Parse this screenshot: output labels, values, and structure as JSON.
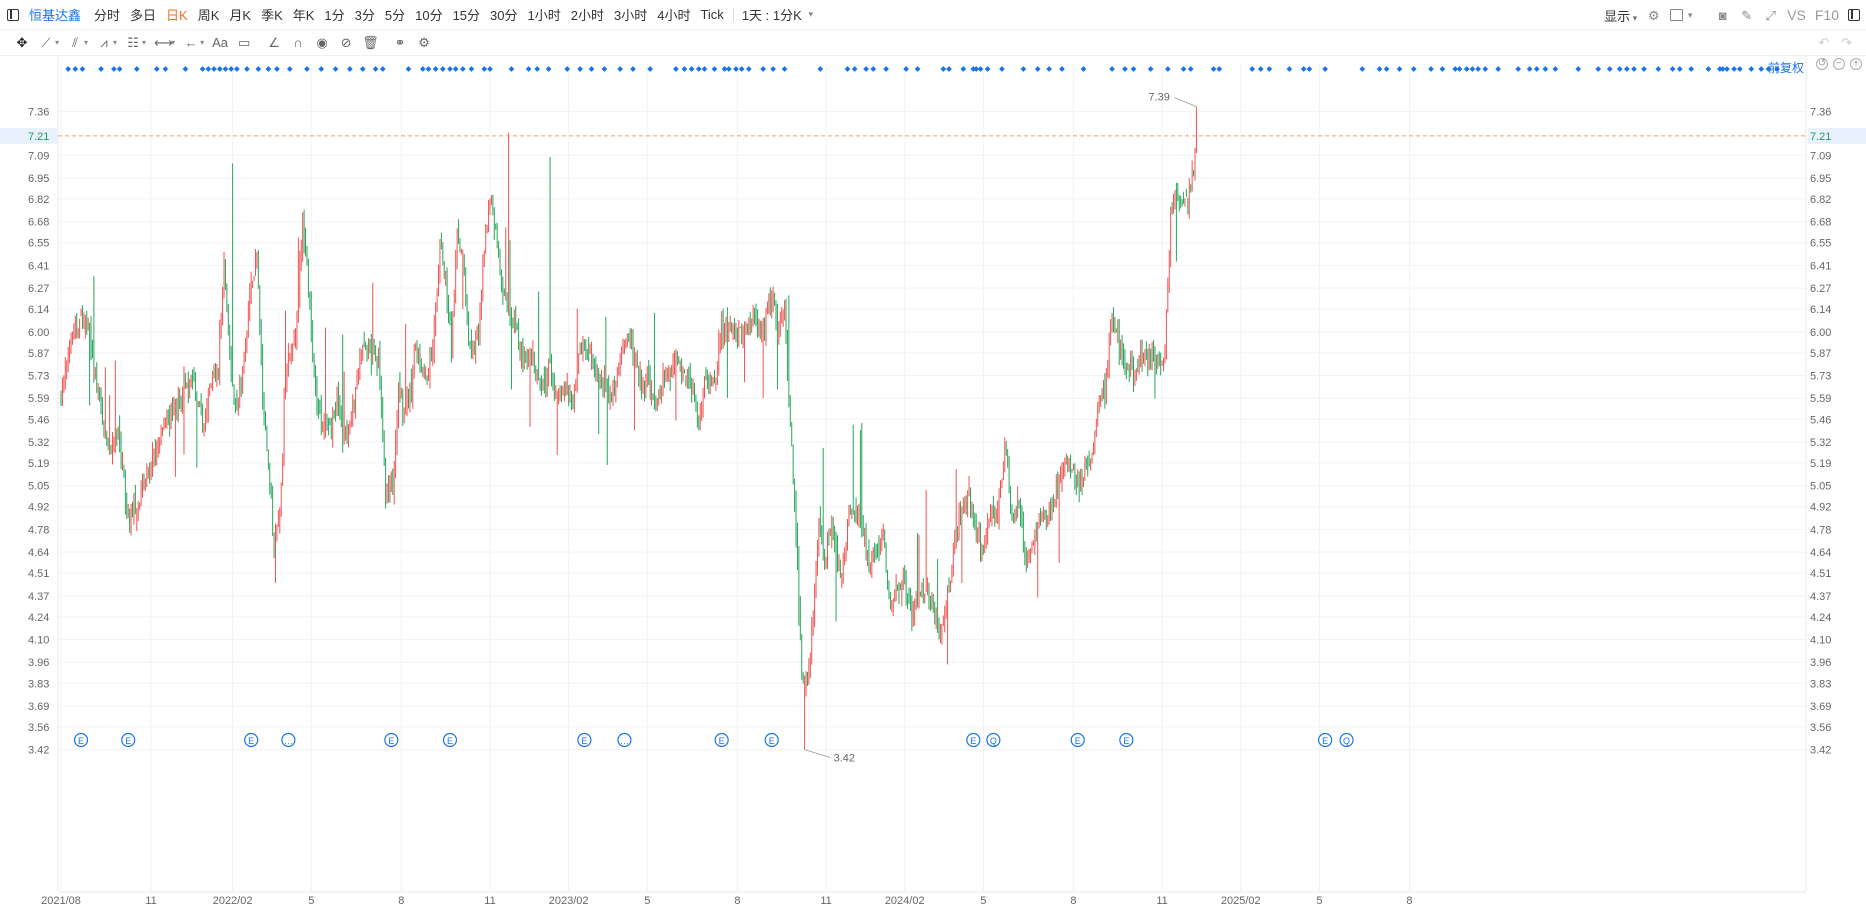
{
  "toolbar": {
    "ticker": "恒基达鑫",
    "periods": [
      "分时",
      "多日",
      "日K",
      "周K",
      "月K",
      "季K",
      "年K",
      "1分",
      "3分",
      "5分",
      "10分",
      "15分",
      "30分",
      "1小时",
      "2小时",
      "3小时",
      "4小时",
      "Tick"
    ],
    "active_period": "日K",
    "period_selector": "1天 : 1分K",
    "display_label": "显示",
    "vs_label": "VS",
    "f10_label": "F10",
    "accent_color": "#1a73e8",
    "active_color": "#f0721e"
  },
  "drawing_tools": [
    "move-icon",
    "line-icon",
    "channel-icon",
    "pattern-icon",
    "fib-icon",
    "measure-icon",
    "arrow-icon",
    "text-icon",
    "comment-icon",
    "angle-icon",
    "magnet-icon",
    "eye-icon",
    "hide-icon",
    "trash-icon",
    "link-icon",
    "settings-icon"
  ],
  "adjust_label": "前复权",
  "chart_data": {
    "type": "candlestick",
    "y_ticks": [
      7.36,
      7.21,
      7.09,
      6.95,
      6.82,
      6.68,
      6.55,
      6.41,
      6.27,
      6.14,
      6.0,
      5.87,
      5.73,
      5.59,
      5.46,
      5.32,
      5.19,
      5.05,
      4.92,
      4.78,
      4.64,
      4.51,
      4.37,
      4.24,
      4.1,
      3.96,
      3.83,
      3.69,
      3.56,
      3.42
    ],
    "ylim": [
      3.35,
      7.53
    ],
    "x_labels": [
      {
        "label": "2021/08",
        "i": 0
      },
      {
        "label": "11",
        "i": 63
      },
      {
        "label": "2022/02",
        "i": 120
      },
      {
        "label": "5",
        "i": 175
      },
      {
        "label": "8",
        "i": 238
      },
      {
        "label": "11",
        "i": 300
      },
      {
        "label": "2023/02",
        "i": 355
      },
      {
        "label": "5",
        "i": 410
      },
      {
        "label": "8",
        "i": 473
      },
      {
        "label": "11",
        "i": 535
      },
      {
        "label": "2024/02",
        "i": 590
      },
      {
        "label": "5",
        "i": 645
      },
      {
        "label": "8",
        "i": 708
      },
      {
        "label": "11",
        "i": 770
      },
      {
        "label": "2025/02",
        "i": 825
      },
      {
        "label": "5",
        "i": 880
      },
      {
        "label": "8",
        "i": 943
      }
    ],
    "current_price": 7.21,
    "high_label": "7.39",
    "low_label": "3.42",
    "up_color": "#ef5350",
    "down_color": "#26a65b",
    "anchors": [
      [
        0,
        5.6
      ],
      [
        7,
        5.97
      ],
      [
        14,
        6.08
      ],
      [
        20,
        6.0
      ],
      [
        27,
        5.56
      ],
      [
        33,
        5.28
      ],
      [
        40,
        5.36
      ],
      [
        47,
        4.85
      ],
      [
        53,
        4.95
      ],
      [
        60,
        5.11
      ],
      [
        67,
        5.27
      ],
      [
        73,
        5.45
      ],
      [
        80,
        5.51
      ],
      [
        87,
        5.7
      ],
      [
        93,
        5.69
      ],
      [
        100,
        5.41
      ],
      [
        106,
        5.72
      ],
      [
        110,
        5.78
      ],
      [
        114,
        6.42
      ],
      [
        118,
        5.84
      ],
      [
        122,
        5.52
      ],
      [
        127,
        5.73
      ],
      [
        132,
        6.2
      ],
      [
        137,
        6.46
      ],
      [
        141,
        5.58
      ],
      [
        145,
        5.17
      ],
      [
        149,
        4.64
      ],
      [
        153,
        4.85
      ],
      [
        157,
        5.72
      ],
      [
        161,
        5.89
      ],
      [
        165,
        6.1
      ],
      [
        169,
        6.62
      ],
      [
        173,
        6.3
      ],
      [
        177,
        5.72
      ],
      [
        181,
        5.46
      ],
      [
        185,
        5.49
      ],
      [
        189,
        5.38
      ],
      [
        193,
        5.62
      ],
      [
        197,
        5.37
      ],
      [
        201,
        5.4
      ],
      [
        205,
        5.52
      ],
      [
        210,
        5.89
      ],
      [
        216,
        5.88
      ],
      [
        222,
        5.84
      ],
      [
        227,
        5.01
      ],
      [
        232,
        5.06
      ],
      [
        236,
        5.63
      ],
      [
        240,
        5.48
      ],
      [
        244,
        5.63
      ],
      [
        248,
        5.91
      ],
      [
        252,
        5.73
      ],
      [
        257,
        5.75
      ],
      [
        261,
        5.99
      ],
      [
        265,
        6.51
      ],
      [
        269,
        6.3
      ],
      [
        273,
        5.93
      ],
      [
        277,
        6.58
      ],
      [
        281,
        6.53
      ],
      [
        285,
        5.92
      ],
      [
        289,
        5.91
      ],
      [
        293,
        6.1
      ],
      [
        297,
        6.62
      ],
      [
        301,
        6.84
      ],
      [
        305,
        6.54
      ],
      [
        309,
        6.26
      ],
      [
        313,
        6.14
      ],
      [
        317,
        6.08
      ],
      [
        321,
        5.87
      ],
      [
        325,
        5.8
      ],
      [
        329,
        5.88
      ],
      [
        333,
        5.72
      ],
      [
        337,
        5.63
      ],
      [
        342,
        5.78
      ],
      [
        346,
        5.64
      ],
      [
        350,
        5.62
      ],
      [
        354,
        5.66
      ],
      [
        358,
        5.57
      ],
      [
        362,
        5.88
      ],
      [
        366,
        5.89
      ],
      [
        370,
        5.86
      ],
      [
        374,
        5.73
      ],
      [
        378,
        5.72
      ],
      [
        382,
        5.69
      ],
      [
        386,
        5.61
      ],
      [
        390,
        5.76
      ],
      [
        394,
        5.9
      ],
      [
        398,
        5.94
      ],
      [
        402,
        5.84
      ],
      [
        406,
        5.66
      ],
      [
        410,
        5.71
      ],
      [
        414,
        5.62
      ],
      [
        418,
        5.6
      ],
      [
        422,
        5.73
      ],
      [
        426,
        5.7
      ],
      [
        430,
        5.86
      ],
      [
        434,
        5.76
      ],
      [
        438,
        5.76
      ],
      [
        442,
        5.65
      ],
      [
        446,
        5.43
      ],
      [
        450,
        5.72
      ],
      [
        454,
        5.68
      ],
      [
        458,
        5.76
      ],
      [
        462,
        6.04
      ],
      [
        466,
        6.06
      ],
      [
        470,
        6.04
      ],
      [
        474,
        5.98
      ],
      [
        478,
        6.0
      ],
      [
        482,
        6.07
      ],
      [
        486,
        6.07
      ],
      [
        490,
        5.95
      ],
      [
        494,
        6.14
      ],
      [
        498,
        6.21
      ],
      [
        502,
        6.03
      ],
      [
        506,
        6.1
      ],
      [
        510,
        5.42
      ],
      [
        514,
        4.76
      ],
      [
        518,
        3.91
      ],
      [
        522,
        3.82
      ],
      [
        526,
        4.28
      ],
      [
        530,
        4.79
      ],
      [
        534,
        4.6
      ],
      [
        538,
        4.8
      ],
      [
        542,
        4.64
      ],
      [
        546,
        4.5
      ],
      [
        550,
        4.81
      ],
      [
        555,
        4.93
      ],
      [
        560,
        4.8
      ],
      [
        565,
        4.57
      ],
      [
        570,
        4.67
      ],
      [
        575,
        4.72
      ],
      [
        580,
        4.29
      ],
      [
        585,
        4.46
      ],
      [
        590,
        4.42
      ],
      [
        595,
        4.24
      ],
      [
        600,
        4.42
      ],
      [
        605,
        4.4
      ],
      [
        610,
        4.31
      ],
      [
        615,
        4.13
      ],
      [
        620,
        4.37
      ],
      [
        625,
        4.68
      ],
      [
        630,
        4.92
      ],
      [
        635,
        4.95
      ],
      [
        640,
        4.78
      ],
      [
        645,
        4.62
      ],
      [
        650,
        4.91
      ],
      [
        655,
        4.93
      ],
      [
        660,
        5.31
      ],
      [
        665,
        4.86
      ],
      [
        670,
        4.93
      ],
      [
        675,
        4.57
      ],
      [
        680,
        4.7
      ],
      [
        685,
        4.89
      ],
      [
        690,
        4.84
      ],
      [
        695,
        4.99
      ],
      [
        700,
        5.17
      ],
      [
        705,
        5.2
      ],
      [
        710,
        5.05
      ],
      [
        715,
        5.1
      ],
      [
        720,
        5.21
      ],
      [
        725,
        5.49
      ],
      [
        730,
        5.67
      ],
      [
        735,
        6.09
      ],
      [
        740,
        5.91
      ],
      [
        745,
        5.79
      ],
      [
        750,
        5.73
      ],
      [
        755,
        5.8
      ],
      [
        760,
        5.86
      ],
      [
        764,
        5.84
      ],
      [
        768,
        5.78
      ],
      [
        772,
        5.86
      ],
      [
        776,
        6.72
      ],
      [
        780,
        6.86
      ],
      [
        784,
        6.82
      ],
      [
        788,
        6.78
      ],
      [
        792,
        7.02
      ],
      [
        794,
        7.21
      ]
    ],
    "markers_top": [
      5,
      10,
      15,
      28,
      37,
      41,
      53,
      67,
      73,
      87,
      99,
      103,
      107,
      111,
      115,
      119,
      123,
      130,
      138,
      145,
      151,
      160,
      172,
      182,
      192,
      202,
      211,
      220,
      225,
      243,
      253,
      257,
      262,
      267,
      272,
      276,
      281,
      287,
      296,
      300,
      315,
      327,
      333,
      341,
      354,
      363,
      371,
      380,
      391,
      400,
      412,
      430,
      436,
      441,
      446,
      450,
      457,
      464,
      467,
      472,
      476,
      481,
      491,
      498,
      506,
      531,
      550,
      555,
      563,
      568,
      577,
      591,
      599,
      617,
      621,
      631,
      638,
      640,
      643,
      648,
      658,
      673,
      683,
      691,
      700,
      715,
      735,
      744,
      750,
      762,
      774,
      785,
      790,
      806,
      810,
      833,
      839,
      845,
      859,
      869,
      873,
      884,
      910,
      922,
      927,
      936,
      946,
      958,
      966,
      975,
      978,
      983,
      987,
      991,
      996,
      1005,
      1019,
      1027,
      1032,
      1038,
      1045,
      1061,
      1075,
      1083,
      1090,
      1095,
      1100,
      1107,
      1117,
      1127,
      1132,
      1140,
      1152,
      1160,
      1162,
      1165,
      1170,
      1174,
      1182,
      1189,
      1194,
      1200
    ],
    "markers_bottom": [
      {
        "i": 14,
        "sym": "E"
      },
      {
        "i": 47,
        "sym": "E"
      },
      {
        "i": 133,
        "sym": "E"
      },
      {
        "i": 159,
        "sym": "…"
      },
      {
        "i": 231,
        "sym": "E"
      },
      {
        "i": 272,
        "sym": "E"
      },
      {
        "i": 366,
        "sym": "E"
      },
      {
        "i": 394,
        "sym": "…"
      },
      {
        "i": 462,
        "sym": "E"
      },
      {
        "i": 497,
        "sym": "E"
      },
      {
        "i": 638,
        "sym": "E"
      },
      {
        "i": 652,
        "sym": "Q"
      },
      {
        "i": 711,
        "sym": "E"
      },
      {
        "i": 745,
        "sym": "E"
      },
      {
        "i": 884,
        "sym": "E"
      },
      {
        "i": 899,
        "sym": "Q"
      }
    ]
  }
}
